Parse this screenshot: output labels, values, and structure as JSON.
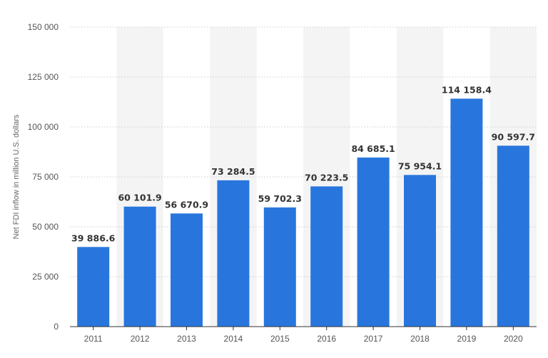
{
  "chart_data": {
    "type": "bar",
    "title": "",
    "xlabel": "",
    "ylabel": "Net FDI inflow in million U.S. dollars",
    "categories": [
      "2011",
      "2012",
      "2013",
      "2014",
      "2015",
      "2016",
      "2017",
      "2018",
      "2019",
      "2020"
    ],
    "values": [
      39886.6,
      60101.9,
      56670.9,
      73284.5,
      59702.3,
      70223.5,
      84685.1,
      75954.1,
      114158.4,
      90597.7
    ],
    "value_labels": [
      "39 886.6",
      "60 101.9",
      "56 670.9",
      "73 284.5",
      "59 702.3",
      "70 223.5",
      "84 685.1",
      "75 954.1",
      "114 158.4",
      "90 597.7"
    ],
    "ylim": [
      0,
      150000
    ],
    "yticks": [
      0,
      25000,
      50000,
      75000,
      100000,
      125000,
      150000
    ],
    "ytick_labels": [
      "0",
      "25 000",
      "50 000",
      "75 000",
      "100 000",
      "125 000",
      "150 000"
    ],
    "grid": "horizontal dotted",
    "legend": "none",
    "colors": {
      "bar": "#2876dd",
      "band": "#f4f4f4",
      "grid": "#cccccc",
      "axis": "#333333"
    }
  }
}
